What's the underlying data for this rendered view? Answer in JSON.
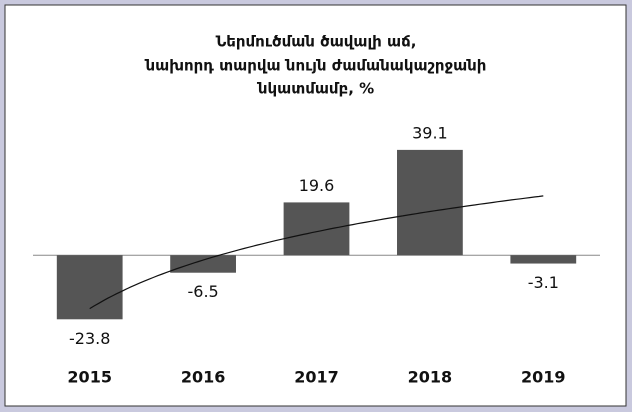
{
  "chart_data": {
    "type": "bar",
    "title": [
      "Ներմուծման ծավալի աճ,",
      "նախորդ տարվա նույն ժամանակաշրջանի",
      "նկատմամբ, %"
    ],
    "categories": [
      "2015",
      "2016",
      "2017",
      "2018",
      "2019"
    ],
    "values": [
      -23.8,
      -6.5,
      19.6,
      39.1,
      -3.1
    ],
    "color": "#555555",
    "ylim": [
      -30,
      45
    ],
    "trendline": "logarithmic"
  }
}
